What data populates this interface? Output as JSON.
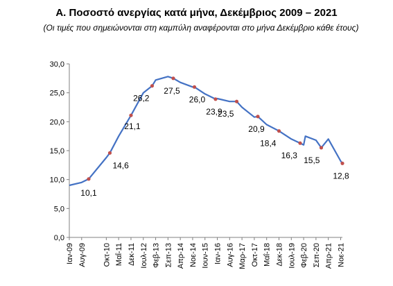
{
  "chart_data": {
    "type": "line",
    "title": "Α. Ποσοστό ανεργίας κατά μήνα, Δεκέμβριος 2009 – 2021",
    "subtitle": "(Οι τιμές που σημειώνονται στη καμπύλη αναφέρονται στο μήνα Δεκέμβριο κάθε έτους)",
    "ylim": [
      0,
      30
    ],
    "yticks": [
      "0,0",
      "5,0",
      "10,0",
      "15,0",
      "20,0",
      "25,0",
      "30,0"
    ],
    "xtick_labels": [
      "Ιαν-09",
      "Αυγ-09",
      "Οκτ-10",
      "Μαΐ-11",
      "Δεκ-11",
      "Ιουλ-12",
      "Φεβ-13",
      "Σεπ-13",
      "Απρ-14",
      "Νοε-14",
      "Ιουν-15",
      "Ιαν-16",
      "Αυγ-16",
      "Μαρ-17",
      "Οκτ-17",
      "Μαΐ-18",
      "Δεκ-18",
      "Ιουλ-19",
      "Φεβ-20",
      "Σεπ-20",
      "Απρ-21",
      "Νοε-21"
    ],
    "series": [
      {
        "points": [
          [
            "Ιαν-09",
            9.0
          ],
          [
            "Αυγ-09",
            9.5
          ],
          [
            "Δεκ-09",
            10.1
          ],
          [
            "Οκτ-10",
            13.8
          ],
          [
            "Δεκ-10",
            14.6
          ],
          [
            "Μαΐ-11",
            17.5
          ],
          [
            "Δεκ-11",
            21.1
          ],
          [
            "Ιουλ-12",
            25.0
          ],
          [
            "Δεκ-12",
            26.2
          ],
          [
            "Φεβ-13",
            27.2
          ],
          [
            "Σεπ-13",
            27.8
          ],
          [
            "Δεκ-13",
            27.5
          ],
          [
            "Απρ-14",
            26.8
          ],
          [
            "Νοε-14",
            26.0
          ],
          [
            "Δεκ-14",
            26.0
          ],
          [
            "Ιουν-15",
            24.8
          ],
          [
            "Δεκ-15",
            23.9
          ],
          [
            "Ιαν-16",
            24.0
          ],
          [
            "Αυγ-16",
            23.5
          ],
          [
            "Δεκ-16",
            23.5
          ],
          [
            "Μαρ-17",
            22.5
          ],
          [
            "Οκτ-17",
            20.8
          ],
          [
            "Δεκ-17",
            20.9
          ],
          [
            "Μαΐ-18",
            19.5
          ],
          [
            "Δεκ-18",
            18.4
          ],
          [
            "Ιουλ-19",
            17.0
          ],
          [
            "Δεκ-19",
            16.3
          ],
          [
            "Φεβ-20",
            16.0
          ],
          [
            "Μαρ-20",
            17.5
          ],
          [
            "Σεπ-20",
            16.8
          ],
          [
            "Δεκ-20",
            15.5
          ],
          [
            "Απρ-21",
            17.0
          ],
          [
            "Νοε-21",
            13.2
          ],
          [
            "Δεκ-21",
            12.8
          ]
        ]
      }
    ],
    "data_labels": [
      {
        "x": "Δεκ-09",
        "value": 10.1,
        "text": "10,1"
      },
      {
        "x": "Δεκ-10",
        "value": 14.6,
        "text": "14,6"
      },
      {
        "x": "Δεκ-11",
        "value": 21.1,
        "text": "21,1"
      },
      {
        "x": "Δεκ-12",
        "value": 26.2,
        "text": "26,2"
      },
      {
        "x": "Δεκ-13",
        "value": 27.5,
        "text": "27,5"
      },
      {
        "x": "Δεκ-14",
        "value": 26.0,
        "text": "26,0"
      },
      {
        "x": "Δεκ-15",
        "value": 23.9,
        "text": "23,9"
      },
      {
        "x": "Δεκ-16",
        "value": 23.5,
        "text": "23,5"
      },
      {
        "x": "Δεκ-17",
        "value": 20.9,
        "text": "20,9"
      },
      {
        "x": "Δεκ-18",
        "value": 18.4,
        "text": "18,4"
      },
      {
        "x": "Δεκ-19",
        "value": 16.3,
        "text": "16,3"
      },
      {
        "x": "Δεκ-20",
        "value": 15.5,
        "text": "15,5"
      },
      {
        "x": "Δεκ-21",
        "value": 12.8,
        "text": "12,8"
      }
    ],
    "line_color": "#4472c4",
    "marker_color": "#c0504d",
    "grid": false,
    "legend": "none"
  }
}
